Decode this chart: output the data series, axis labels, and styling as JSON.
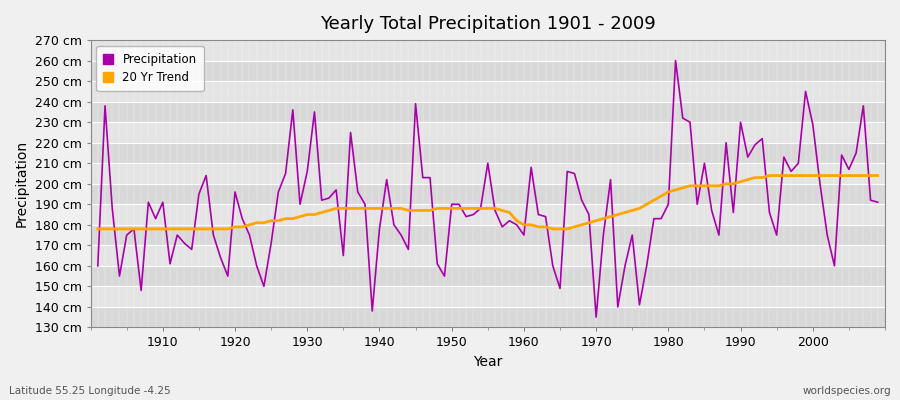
{
  "title": "Yearly Total Precipitation 1901 - 2009",
  "xlabel": "Year",
  "ylabel": "Precipitation",
  "bg_color": "#f0f0f0",
  "plot_bg_color": "#e0e0e0",
  "band_color_light": "#dcdcdc",
  "band_color_dark": "#c8c8c8",
  "precip_color": "#aa00aa",
  "trend_color": "#FFA500",
  "ylim": [
    130,
    270
  ],
  "ytick_step": 10,
  "years": [
    1901,
    1902,
    1903,
    1904,
    1905,
    1906,
    1907,
    1908,
    1909,
    1910,
    1911,
    1912,
    1913,
    1914,
    1915,
    1916,
    1917,
    1918,
    1919,
    1920,
    1921,
    1922,
    1923,
    1924,
    1925,
    1926,
    1927,
    1928,
    1929,
    1930,
    1931,
    1932,
    1933,
    1934,
    1935,
    1936,
    1937,
    1938,
    1939,
    1940,
    1941,
    1942,
    1943,
    1944,
    1945,
    1946,
    1947,
    1948,
    1949,
    1950,
    1951,
    1952,
    1953,
    1954,
    1955,
    1956,
    1957,
    1958,
    1959,
    1960,
    1961,
    1962,
    1963,
    1964,
    1965,
    1966,
    1967,
    1968,
    1969,
    1970,
    1971,
    1972,
    1973,
    1974,
    1975,
    1976,
    1977,
    1978,
    1979,
    1980,
    1981,
    1982,
    1983,
    1984,
    1985,
    1986,
    1987,
    1988,
    1989,
    1990,
    1991,
    1992,
    1993,
    1994,
    1995,
    1996,
    1997,
    1998,
    1999,
    2000,
    2001,
    2002,
    2003,
    2004,
    2005,
    2006,
    2007,
    2008,
    2009
  ],
  "precip": [
    160,
    238,
    188,
    155,
    175,
    178,
    148,
    191,
    183,
    191,
    161,
    175,
    171,
    168,
    195,
    204,
    175,
    164,
    155,
    196,
    183,
    175,
    160,
    150,
    171,
    196,
    205,
    236,
    190,
    206,
    235,
    192,
    193,
    197,
    165,
    225,
    196,
    190,
    138,
    178,
    202,
    180,
    175,
    168,
    239,
    203,
    203,
    161,
    155,
    190,
    190,
    184,
    185,
    188,
    210,
    187,
    179,
    182,
    180,
    175,
    208,
    185,
    184,
    160,
    149,
    206,
    205,
    192,
    185,
    135,
    175,
    202,
    140,
    160,
    175,
    141,
    160,
    183,
    183,
    190,
    260,
    232,
    230,
    190,
    210,
    187,
    175,
    220,
    186,
    230,
    213,
    219,
    222,
    186,
    175,
    213,
    206,
    210,
    245,
    229,
    200,
    175,
    160,
    214,
    207,
    215,
    238,
    192,
    191
  ],
  "trend": [
    178,
    178,
    178,
    178,
    178,
    178,
    178,
    178,
    178,
    178,
    178,
    178,
    178,
    178,
    178,
    178,
    178,
    178,
    178,
    179,
    179,
    180,
    181,
    181,
    182,
    182,
    183,
    183,
    184,
    185,
    185,
    186,
    187,
    188,
    188,
    188,
    188,
    188,
    188,
    188,
    188,
    188,
    188,
    187,
    187,
    187,
    187,
    188,
    188,
    188,
    188,
    188,
    188,
    188,
    188,
    188,
    187,
    186,
    182,
    180,
    180,
    179,
    179,
    178,
    178,
    178,
    179,
    180,
    181,
    182,
    183,
    184,
    185,
    186,
    187,
    188,
    190,
    192,
    194,
    196,
    197,
    198,
    199,
    199,
    199,
    199,
    199,
    200,
    200,
    201,
    202,
    203,
    203,
    204,
    204,
    204,
    204,
    204,
    204,
    204,
    204,
    204,
    204,
    204,
    204,
    204,
    204,
    204,
    204
  ],
  "legend_labels": [
    "Precipitation",
    "20 Yr Trend"
  ],
  "footnote_left": "Latitude 55.25 Longitude -4.25",
  "footnote_right": "worldspecies.org"
}
